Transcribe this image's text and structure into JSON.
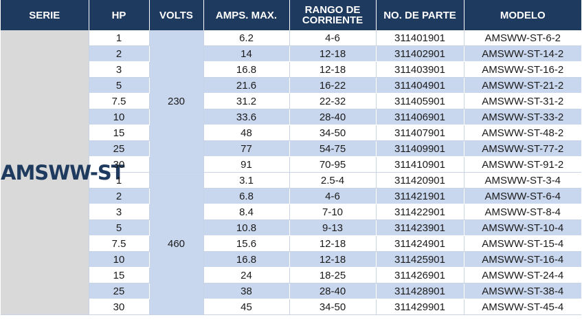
{
  "table": {
    "headers": {
      "serie": "SERIE",
      "hp": "HP",
      "volts": "VOLTS",
      "amps": "AMPS. MAX.",
      "rango_line1": "RANGO DE",
      "rango_line2": "CORRIENTE",
      "parte": "NO. DE PARTE",
      "modelo": "MODELO"
    },
    "serie": "AMSWW-ST",
    "groups": [
      {
        "volts": "230",
        "rows": [
          {
            "hp": "1",
            "amps": "6.2",
            "rango": "4-6",
            "parte": "311401901",
            "modelo": "AMSWW-ST-6-2"
          },
          {
            "hp": "2",
            "amps": "14",
            "rango": "12-18",
            "parte": "311402901",
            "modelo": "AMSWW-ST-14-2"
          },
          {
            "hp": "3",
            "amps": "16.8",
            "rango": "12-18",
            "parte": "311403901",
            "modelo": "AMSWW-ST-16-2"
          },
          {
            "hp": "5",
            "amps": "21.6",
            "rango": "16-22",
            "parte": "311404901",
            "modelo": "AMSWW-ST-21-2"
          },
          {
            "hp": "7.5",
            "amps": "31.2",
            "rango": "22-32",
            "parte": "311405901",
            "modelo": "AMSWW-ST-31-2"
          },
          {
            "hp": "10",
            "amps": "33.6",
            "rango": "28-40",
            "parte": "311406901",
            "modelo": "AMSWW-ST-33-2"
          },
          {
            "hp": "15",
            "amps": "48",
            "rango": "34-50",
            "parte": "311407901",
            "modelo": "AMSWW-ST-48-2"
          },
          {
            "hp": "25",
            "amps": "77",
            "rango": "54-75",
            "parte": "311409901",
            "modelo": "AMSWW-ST-77-2"
          },
          {
            "hp": "30",
            "amps": "91",
            "rango": "70-95",
            "parte": "311410901",
            "modelo": "AMSWW-ST-91-2"
          }
        ]
      },
      {
        "volts": "460",
        "rows": [
          {
            "hp": "1",
            "amps": "3.1",
            "rango": "2.5-4",
            "parte": "311420901",
            "modelo": "AMSWW-ST-3-4"
          },
          {
            "hp": "2",
            "amps": "6.8",
            "rango": "4-6",
            "parte": "311421901",
            "modelo": "AMSWW-ST-6-4"
          },
          {
            "hp": "3",
            "amps": "8.4",
            "rango": "7-10",
            "parte": "311422901",
            "modelo": "AMSWW-ST-8-4"
          },
          {
            "hp": "5",
            "amps": "10.8",
            "rango": "9-13",
            "parte": "311423901",
            "modelo": "AMSWW-ST-10-4"
          },
          {
            "hp": "7.5",
            "amps": "15.6",
            "rango": "12-18",
            "parte": "311424901",
            "modelo": "AMSWW-ST-15-4"
          },
          {
            "hp": "10",
            "amps": "16.8",
            "rango": "12-18",
            "parte": "311425901",
            "modelo": "AMSWW-ST-16-4"
          },
          {
            "hp": "15",
            "amps": "24",
            "rango": "18-25",
            "parte": "311426901",
            "modelo": "AMSWW-ST-24-4"
          },
          {
            "hp": "25",
            "amps": "38",
            "rango": "28-40",
            "parte": "311428901",
            "modelo": "AMSWW-ST-38-4"
          },
          {
            "hp": "30",
            "amps": "45",
            "rango": "34-50",
            "parte": "311429901",
            "modelo": "AMSWW-ST-45-4"
          }
        ]
      }
    ]
  }
}
